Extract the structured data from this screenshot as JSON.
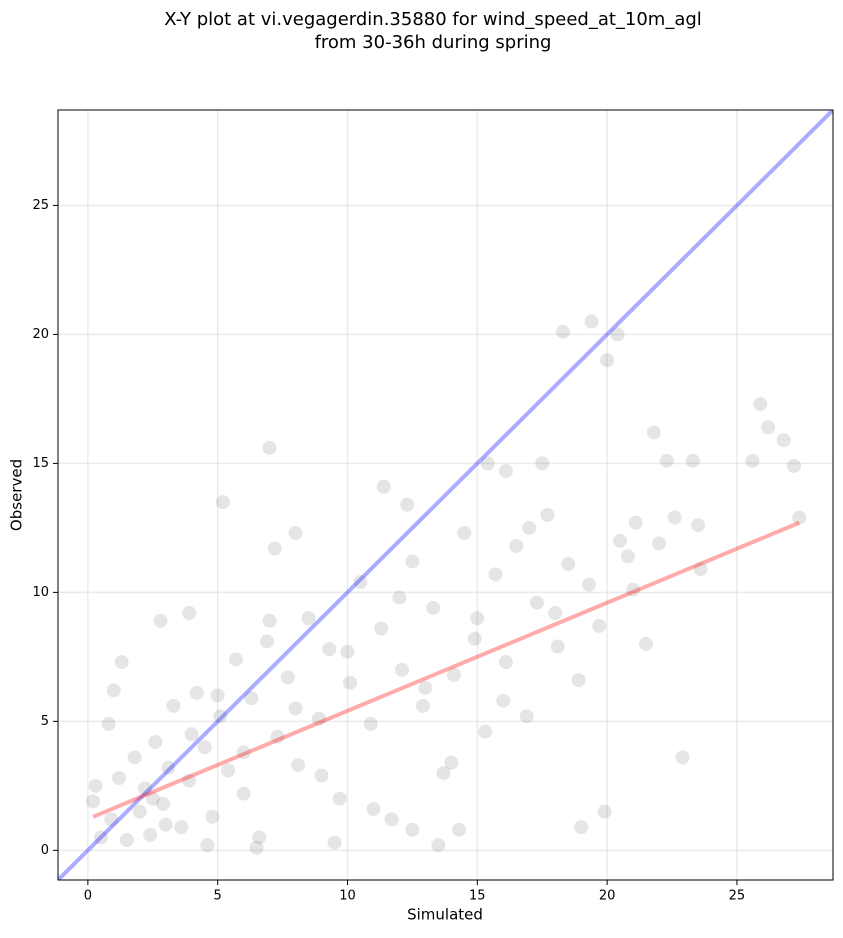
{
  "chart_data": {
    "type": "scatter",
    "title": [
      "X-Y plot at vi.vegagerdin.35880 for wind_speed_at_10m_agl",
      "from 30-36h during spring"
    ],
    "xlabel": "Simulated",
    "ylabel": "Observed",
    "xlim": [
      -1.15,
      28.7
    ],
    "ylim": [
      -1.15,
      28.7
    ],
    "xticks": [
      0,
      5,
      10,
      15,
      20,
      25
    ],
    "yticks": [
      0,
      5,
      10,
      15,
      20,
      25
    ],
    "grid": true,
    "series": [
      {
        "type": "scatter",
        "color": "#000000",
        "opacity": 0.1,
        "x": [
          7.0,
          5.2,
          18.3,
          19.4,
          20.4,
          20.0,
          21.8,
          25.9,
          26.2,
          26.8,
          27.2,
          27.4,
          25.6,
          23.3,
          22.3,
          22.9,
          19.0,
          19.9,
          13.5,
          14.3,
          17.5,
          16.1,
          15.4,
          11.4,
          12.3,
          23.5,
          23.6,
          22.6,
          21.1,
          20.8,
          8.0,
          7.2,
          1.3,
          0.8,
          0.3,
          0.2,
          1.0,
          3.9,
          2.8,
          0.5,
          0.9,
          1.2,
          1.5,
          1.8,
          2.0,
          2.2,
          2.4,
          2.6,
          2.9,
          3.1,
          3.3,
          3.6,
          3.9,
          4.2,
          4.5,
          4.8,
          5.1,
          5.4,
          5.7,
          6.0,
          6.3,
          6.6,
          6.9,
          7.3,
          7.7,
          8.1,
          8.5,
          8.9,
          9.3,
          9.7,
          10.1,
          10.5,
          10.9,
          11.3,
          11.7,
          12.1,
          12.5,
          12.9,
          13.3,
          13.7,
          14.1,
          14.5,
          14.9,
          15.3,
          15.7,
          16.1,
          16.5,
          16.9,
          17.3,
          17.7,
          18.1,
          18.5,
          18.9,
          19.3,
          19.7,
          20.5,
          21.0,
          21.5,
          22.0,
          2.5,
          3.0,
          4.0,
          5.0,
          6.0,
          7.0,
          8.0,
          9.0,
          10.0,
          11.0,
          12.0,
          13.0,
          14.0,
          15.0,
          16.0,
          17.0,
          18.0,
          4.6,
          6.5,
          9.5,
          12.5
        ],
        "values": [
          15.6,
          13.5,
          20.1,
          20.5,
          20.0,
          19.0,
          16.2,
          17.3,
          16.4,
          15.9,
          14.9,
          12.9,
          15.1,
          15.1,
          15.1,
          3.6,
          0.9,
          1.5,
          0.2,
          0.8,
          15.0,
          14.7,
          15.0,
          14.1,
          13.4,
          12.6,
          10.9,
          12.9,
          12.7,
          11.4,
          12.3,
          11.7,
          7.3,
          4.9,
          2.5,
          1.9,
          6.2,
          9.2,
          8.9,
          0.5,
          1.2,
          2.8,
          0.4,
          3.6,
          1.5,
          2.4,
          0.6,
          4.2,
          1.8,
          3.2,
          5.6,
          0.9,
          2.7,
          6.1,
          4.0,
          1.3,
          5.2,
          3.1,
          7.4,
          2.2,
          5.9,
          0.5,
          8.1,
          4.4,
          6.7,
          3.3,
          9.0,
          5.1,
          7.8,
          2.0,
          6.5,
          10.4,
          4.9,
          8.6,
          1.2,
          7.0,
          11.2,
          5.6,
          9.4,
          3.0,
          6.8,
          12.3,
          8.2,
          4.6,
          10.7,
          7.3,
          11.8,
          5.2,
          9.6,
          13.0,
          7.9,
          11.1,
          6.6,
          10.3,
          8.7,
          12.0,
          10.1,
          8.0,
          11.9,
          2.0,
          1.0,
          4.5,
          6.0,
          3.8,
          8.9,
          5.5,
          2.9,
          7.7,
          1.6,
          9.8,
          6.3,
          3.4,
          9.0,
          5.8,
          12.5,
          9.2,
          0.2,
          0.1,
          0.3,
          0.8
        ]
      },
      {
        "type": "line",
        "color": "#0000ff",
        "opacity": 0.33,
        "x": [
          -1.15,
          28.7
        ],
        "values": [
          -1.15,
          28.7
        ]
      },
      {
        "type": "line",
        "color": "#ff0000",
        "opacity": 0.33,
        "x": [
          0.2,
          27.4
        ],
        "values": [
          1.3,
          12.7
        ]
      }
    ]
  }
}
